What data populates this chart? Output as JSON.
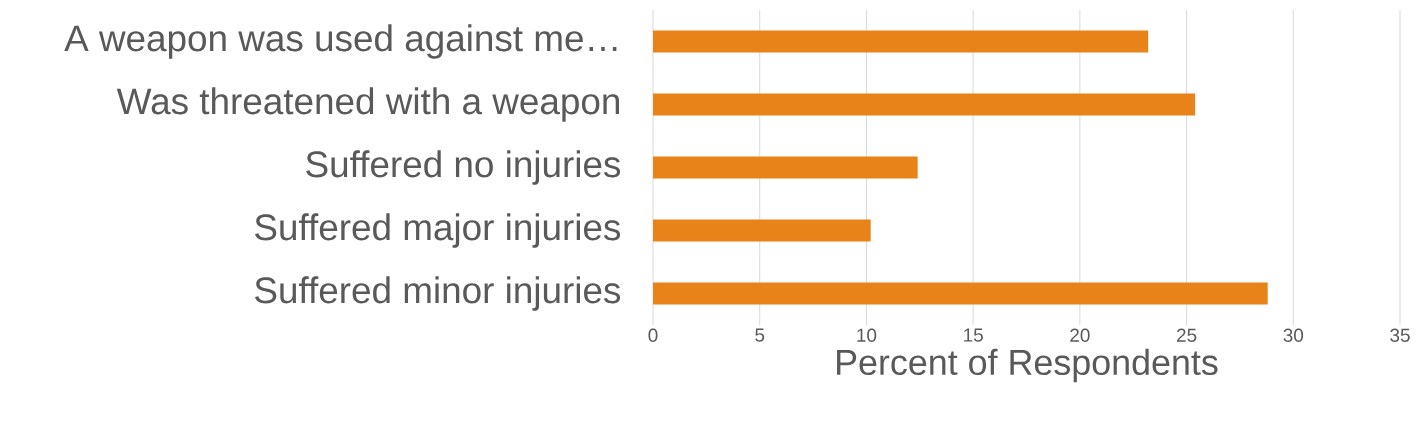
{
  "chart_data": {
    "type": "bar",
    "orientation": "horizontal",
    "xlabel": "Percent of Respondents",
    "categories": [
      "A weapon was used against me…",
      "Was threatened with a weapon",
      "Suffered no injuries",
      "Suffered major injuries",
      "Suffered minor injuries"
    ],
    "values": [
      23.2,
      25.4,
      12.4,
      10.2,
      28.8
    ],
    "color": "#e8831a",
    "xlim": [
      0,
      35
    ],
    "xticks": [
      0,
      5,
      10,
      15,
      20,
      25,
      30,
      35
    ],
    "grid": "x"
  }
}
